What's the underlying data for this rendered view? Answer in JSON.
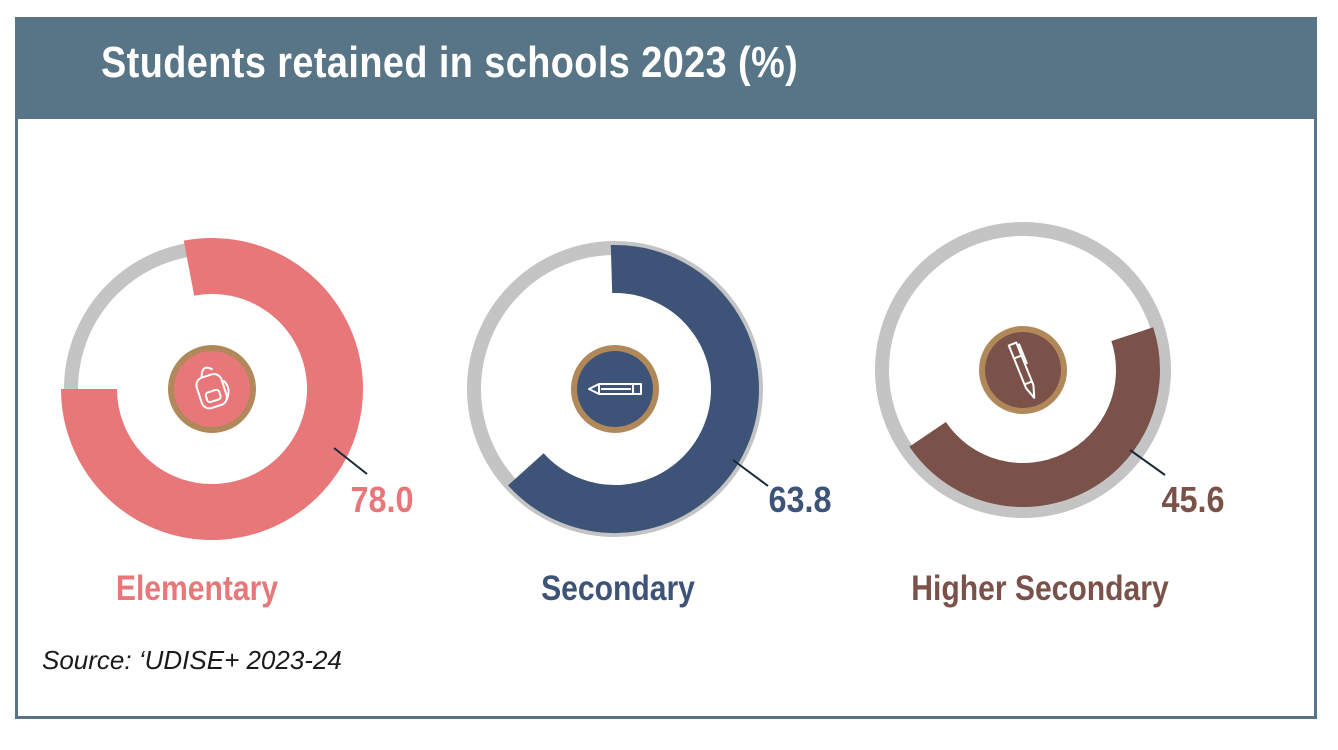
{
  "title": "Students retained in schools 2023 (%)",
  "source": "Source: ‘UDISE+ 2023-24",
  "chart_data": {
    "type": "pie",
    "title": "Students retained in schools 2023 (%)",
    "unit": "%",
    "max": 100,
    "categories": [
      "Elementary",
      "Secondary",
      "Higher Secondary"
    ],
    "values": [
      78.0,
      63.8,
      45.6
    ],
    "value_labels": [
      "78.0",
      "63.8",
      "45.6"
    ],
    "colors": [
      "#e8777a",
      "#3d5478",
      "#7a5249"
    ],
    "track_color": "#c4c4c4",
    "icons": [
      "backpack-icon",
      "pencil-icon",
      "pen-icon"
    ],
    "icon_badge_border": "#b0885a"
  }
}
